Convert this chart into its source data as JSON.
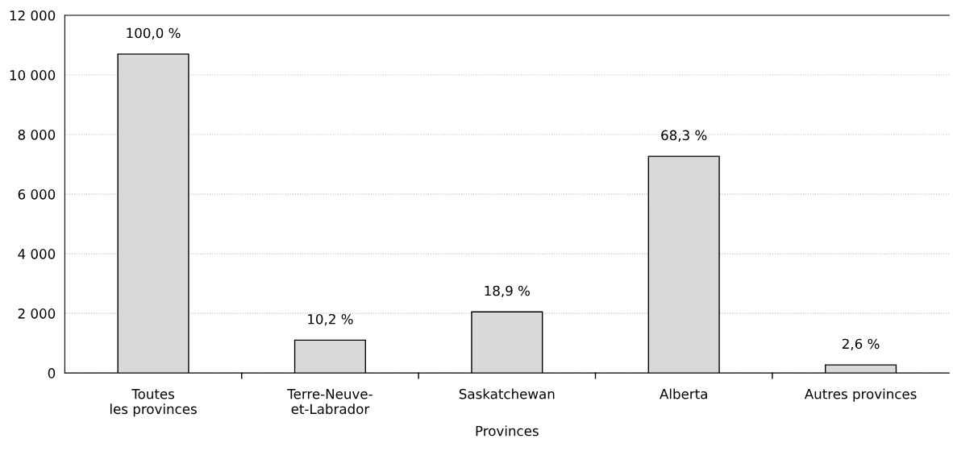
{
  "chart_data": {
    "type": "bar",
    "xlabel": "Provinces",
    "categories": [
      "Toutes\nles provinces",
      "Terre-Neuve-\net-Labrador",
      "Saskatchewan",
      "Alberta",
      "Autres provinces"
    ],
    "values": [
      10700,
      1100,
      2050,
      7270,
      270
    ],
    "annotations": [
      {
        "text": "100,0 %",
        "x": "Toutes\nles provinces",
        "y": 10700
      },
      {
        "text": "10,2 %",
        "x": "Terre-Neuve-\net-Labrador",
        "y": 1100
      },
      {
        "text": "18,9 %",
        "x": "Saskatchewan",
        "y": 2050
      },
      {
        "text": "68,3 %",
        "x": "Alberta",
        "y": 7270
      },
      {
        "text": "2,6 %",
        "x": "Autres provinces",
        "y": 270
      }
    ],
    "color": "#d9d9d9",
    "ylim": [
      0,
      12000
    ],
    "yticks": [
      0,
      {
        "value": 2000,
        "label": "2 000"
      },
      {
        "value": 4000,
        "label": "4 000"
      },
      {
        "value": 6000,
        "label": "6 000"
      },
      {
        "value": 8000,
        "label": "8 000"
      },
      {
        "value": 10000,
        "label": "10 000"
      },
      {
        "value": 12000,
        "label": "12 000"
      }
    ],
    "grid": "y",
    "legend": false
  }
}
